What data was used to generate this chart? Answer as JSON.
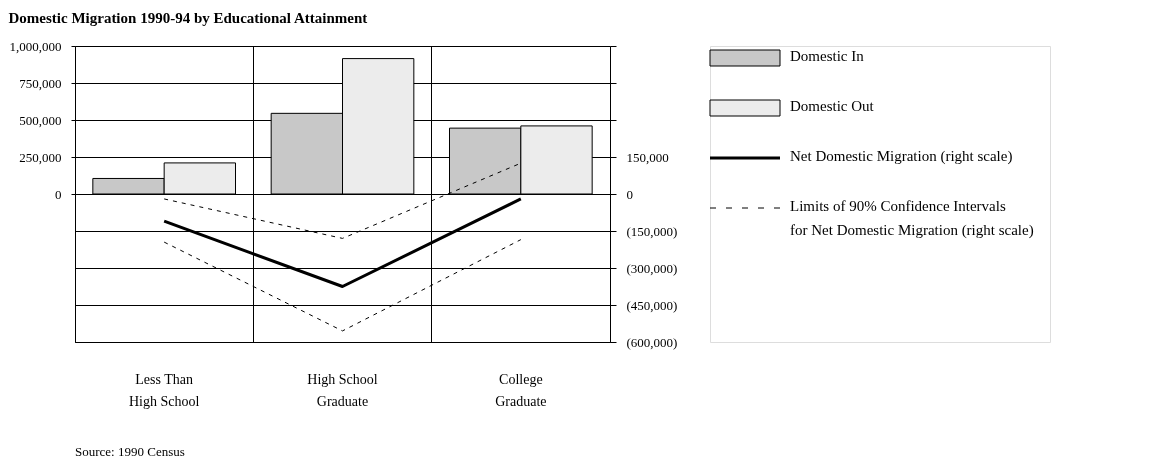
{
  "chart_data": {
    "type": "bar",
    "title": "Domestic Migration 1990-94 by Educational Attainment",
    "categories": [
      "Less Than High School",
      "High School Graduate",
      "College Graduate"
    ],
    "series": [
      {
        "name": "Domestic In",
        "color": "#c8c8c8",
        "values": [
          105000,
          545000,
          445000
        ]
      },
      {
        "name": "Domestic Out",
        "color": "#ececec",
        "values": [
          210000,
          915000,
          460000
        ]
      },
      {
        "name": "Net Domestic Migration (right scale)",
        "type": "line",
        "axis": "y2",
        "color": "#000000",
        "line_style": "solid",
        "values": [
          -110000,
          -375000,
          -20000
        ]
      },
      {
        "name": "Limits of 90% Confidence Intervals for Net Domestic Migration (right scale)",
        "type": "line",
        "axis": "y2",
        "color": "#000000",
        "line_style": "dashed",
        "values": [
          -20000,
          -180000,
          125000
        ]
      },
      {
        "type": "line",
        "axis": "y2",
        "color": "#000000",
        "line_style": "dashed",
        "values": [
          -195000,
          -555000,
          -185000
        ]
      }
    ],
    "ylim": [
      -1000000,
      1000000
    ],
    "yticks": [
      {
        "value": 0,
        "label": "0"
      },
      {
        "value": 250000,
        "label": "250,000"
      },
      {
        "value": 500000,
        "label": "500,000"
      },
      {
        "value": 750000,
        "label": "750,000"
      },
      {
        "value": 1000000,
        "label": "1,000,000"
      }
    ],
    "y2lim": [
      -600000,
      600000
    ],
    "y2ticks": [
      {
        "value": 600000,
        "label": null
      },
      {
        "value": 450000,
        "label": null
      },
      {
        "value": 300000,
        "label": null
      },
      {
        "value": 150000,
        "label": "150,000"
      },
      {
        "value": 0,
        "label": "0"
      },
      {
        "value": -150000,
        "label": "(150,000)"
      },
      {
        "value": -300000,
        "label": "(300,000)"
      },
      {
        "value": -450000,
        "label": "(450,000)"
      },
      {
        "value": -600000,
        "label": "(600,000)"
      }
    ],
    "grid": true,
    "legend": "right",
    "marker": "none",
    "annotations": [
      "Source:  1990 Census"
    ]
  }
}
